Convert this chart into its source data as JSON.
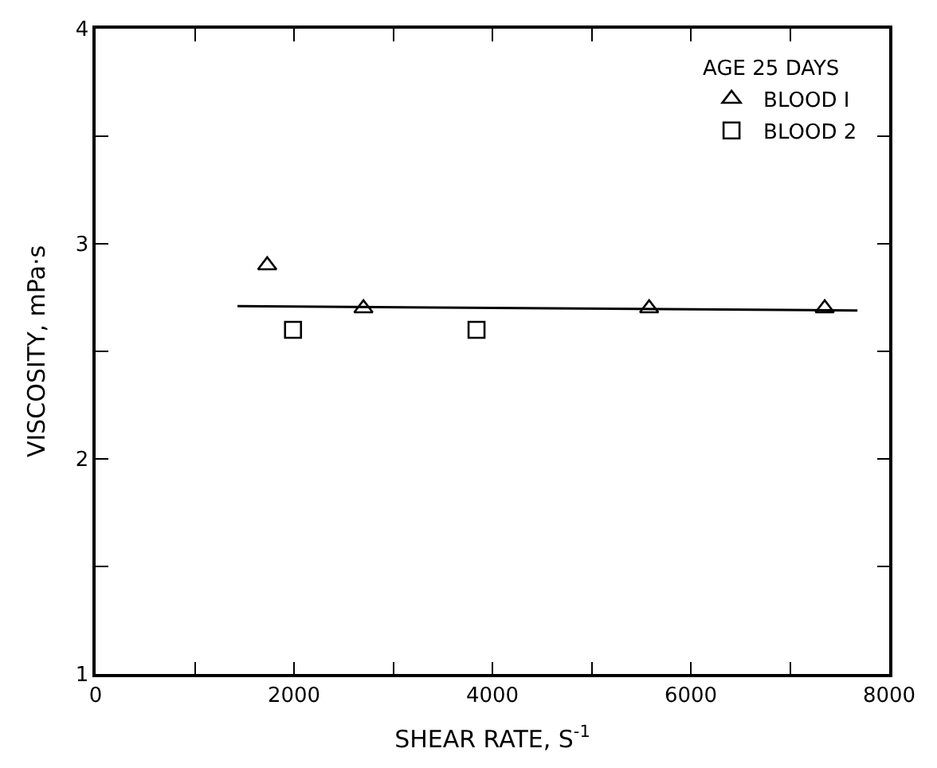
{
  "chart_data": {
    "type": "scatter",
    "xlabel": "SHEAR RATE, S$^{-1}$",
    "ylabel": "VISCOSITY, mPa·s",
    "legend_title": "AGE 25 DAYS",
    "legend": "top right",
    "series": [
      {
        "name": "BLOOD I",
        "color": "#000000",
        "marker": "triangle",
        "x": [
          1730,
          2700,
          5580,
          7350
        ],
        "values": [
          2.9,
          2.7,
          2.7,
          2.7
        ]
      },
      {
        "name": "BLOOD 2",
        "color": "#000000",
        "marker": "square",
        "x": [
          1990,
          3840
        ],
        "values": [
          2.6,
          2.6
        ]
      },
      {
        "type": "line",
        "color": "#000000",
        "marker": "none",
        "line_style": "solid",
        "x": [
          1430,
          7680
        ],
        "values": [
          2.71,
          2.69
        ]
      }
    ],
    "xlim": [
      0,
      8000
    ],
    "xticks": [
      0,
      {
        "value": 1000,
        "label": null
      },
      2000,
      {
        "value": 3000,
        "label": null
      },
      4000,
      {
        "value": 5000,
        "label": null
      },
      6000,
      {
        "value": 7000,
        "label": null
      },
      8000
    ],
    "ylim": [
      1,
      4
    ],
    "yticks": [
      1,
      {
        "value": 1.5,
        "label": null
      },
      2,
      {
        "value": 2.5,
        "label": null
      },
      3,
      {
        "value": 3.5,
        "label": null
      },
      4
    ]
  }
}
